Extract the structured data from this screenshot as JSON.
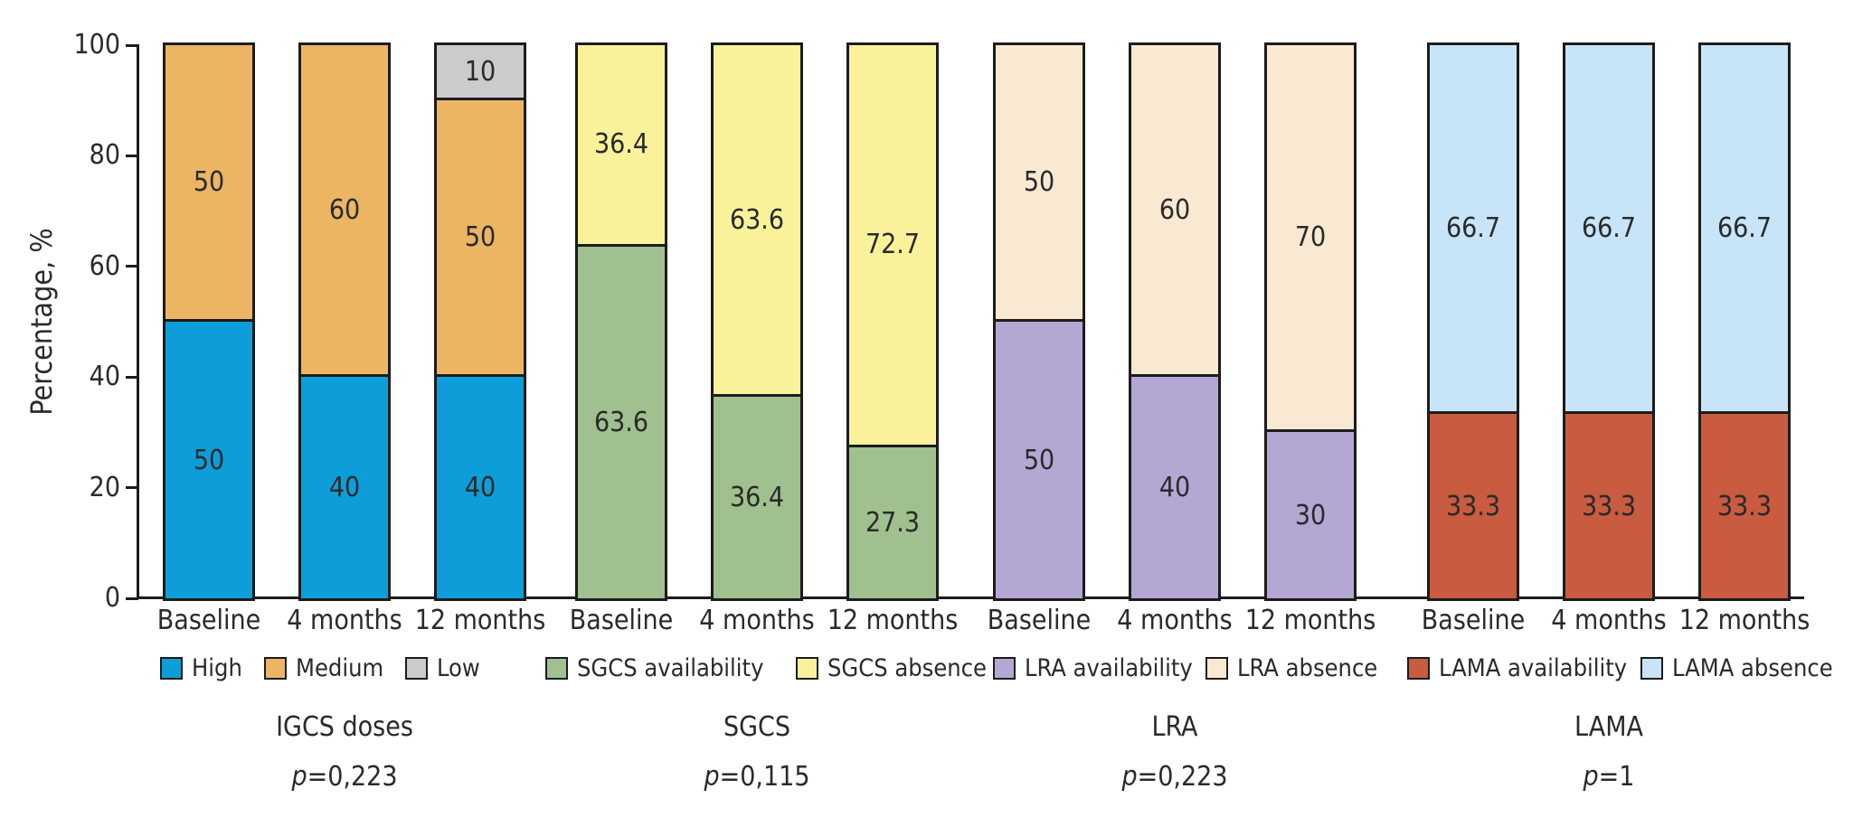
{
  "chart_data": {
    "type": "bar",
    "stacked": true,
    "orientation": "vertical",
    "title": "",
    "ylabel": "Percentage, %",
    "ylim": [
      0,
      100
    ],
    "yticks": [
      "0",
      "20",
      "40",
      "60",
      "80",
      "100"
    ],
    "grid": false,
    "categories": [
      "Baseline",
      "4 months",
      "12 months"
    ],
    "legend_position": "bottom",
    "groups": [
      {
        "name": "IGCS doses",
        "p_value": "p=0,223",
        "series": [
          {
            "name": "High",
            "color": "#0d9dd9",
            "values": [
              50,
              40,
              40
            ]
          },
          {
            "name": "Medium",
            "color": "#ebb564",
            "values": [
              50,
              60,
              50
            ]
          },
          {
            "name": "Low",
            "color": "#cccbca",
            "values": [
              0,
              0,
              10
            ]
          }
        ]
      },
      {
        "name": "SGCS",
        "p_value": "p=0,115",
        "series": [
          {
            "name": "SGCS availability",
            "color": "#a0c08f",
            "values": [
              63.6,
              36.4,
              27.3
            ]
          },
          {
            "name": "SGCS absence",
            "color": "#faf29b",
            "values": [
              36.4,
              63.6,
              72.7
            ]
          }
        ]
      },
      {
        "name": "LRA",
        "p_value": "p=0,223",
        "series": [
          {
            "name": "LRA availability",
            "color": "#b5a7d3",
            "values": [
              50,
              40,
              30
            ]
          },
          {
            "name": "LRA absence",
            "color": "#f9e9d2",
            "values": [
              50,
              60,
              70
            ]
          }
        ]
      },
      {
        "name": "LAMA",
        "p_value": "p=1",
        "series": [
          {
            "name": "LAMA availability",
            "color": "#c85b40",
            "values": [
              33.3,
              33.3,
              33.3
            ]
          },
          {
            "name": "LAMA absence",
            "color": "#c8e4f9",
            "values": [
              66.7,
              66.7,
              66.7
            ]
          }
        ]
      }
    ],
    "legend": [
      {
        "label": "High",
        "color": "#0d9dd9"
      },
      {
        "label": "Medium",
        "color": "#ebb564"
      },
      {
        "label": "Low",
        "color": "#cccbca"
      },
      {
        "label": "SGCS availability",
        "color": "#a0c08f"
      },
      {
        "label": "SGCS absence",
        "color": "#faf29b"
      },
      {
        "label": "LRA availability",
        "color": "#b5a7d3"
      },
      {
        "label": "LRA absence",
        "color": "#f9e9d2"
      },
      {
        "label": "LAMA availability",
        "color": "#c85b40"
      },
      {
        "label": "LAMA absence",
        "color": "#c8e4f9"
      }
    ],
    "colors": {
      "axis": "#1c1c1c",
      "text": "#2a2a2a",
      "background": "#ffffff"
    }
  }
}
